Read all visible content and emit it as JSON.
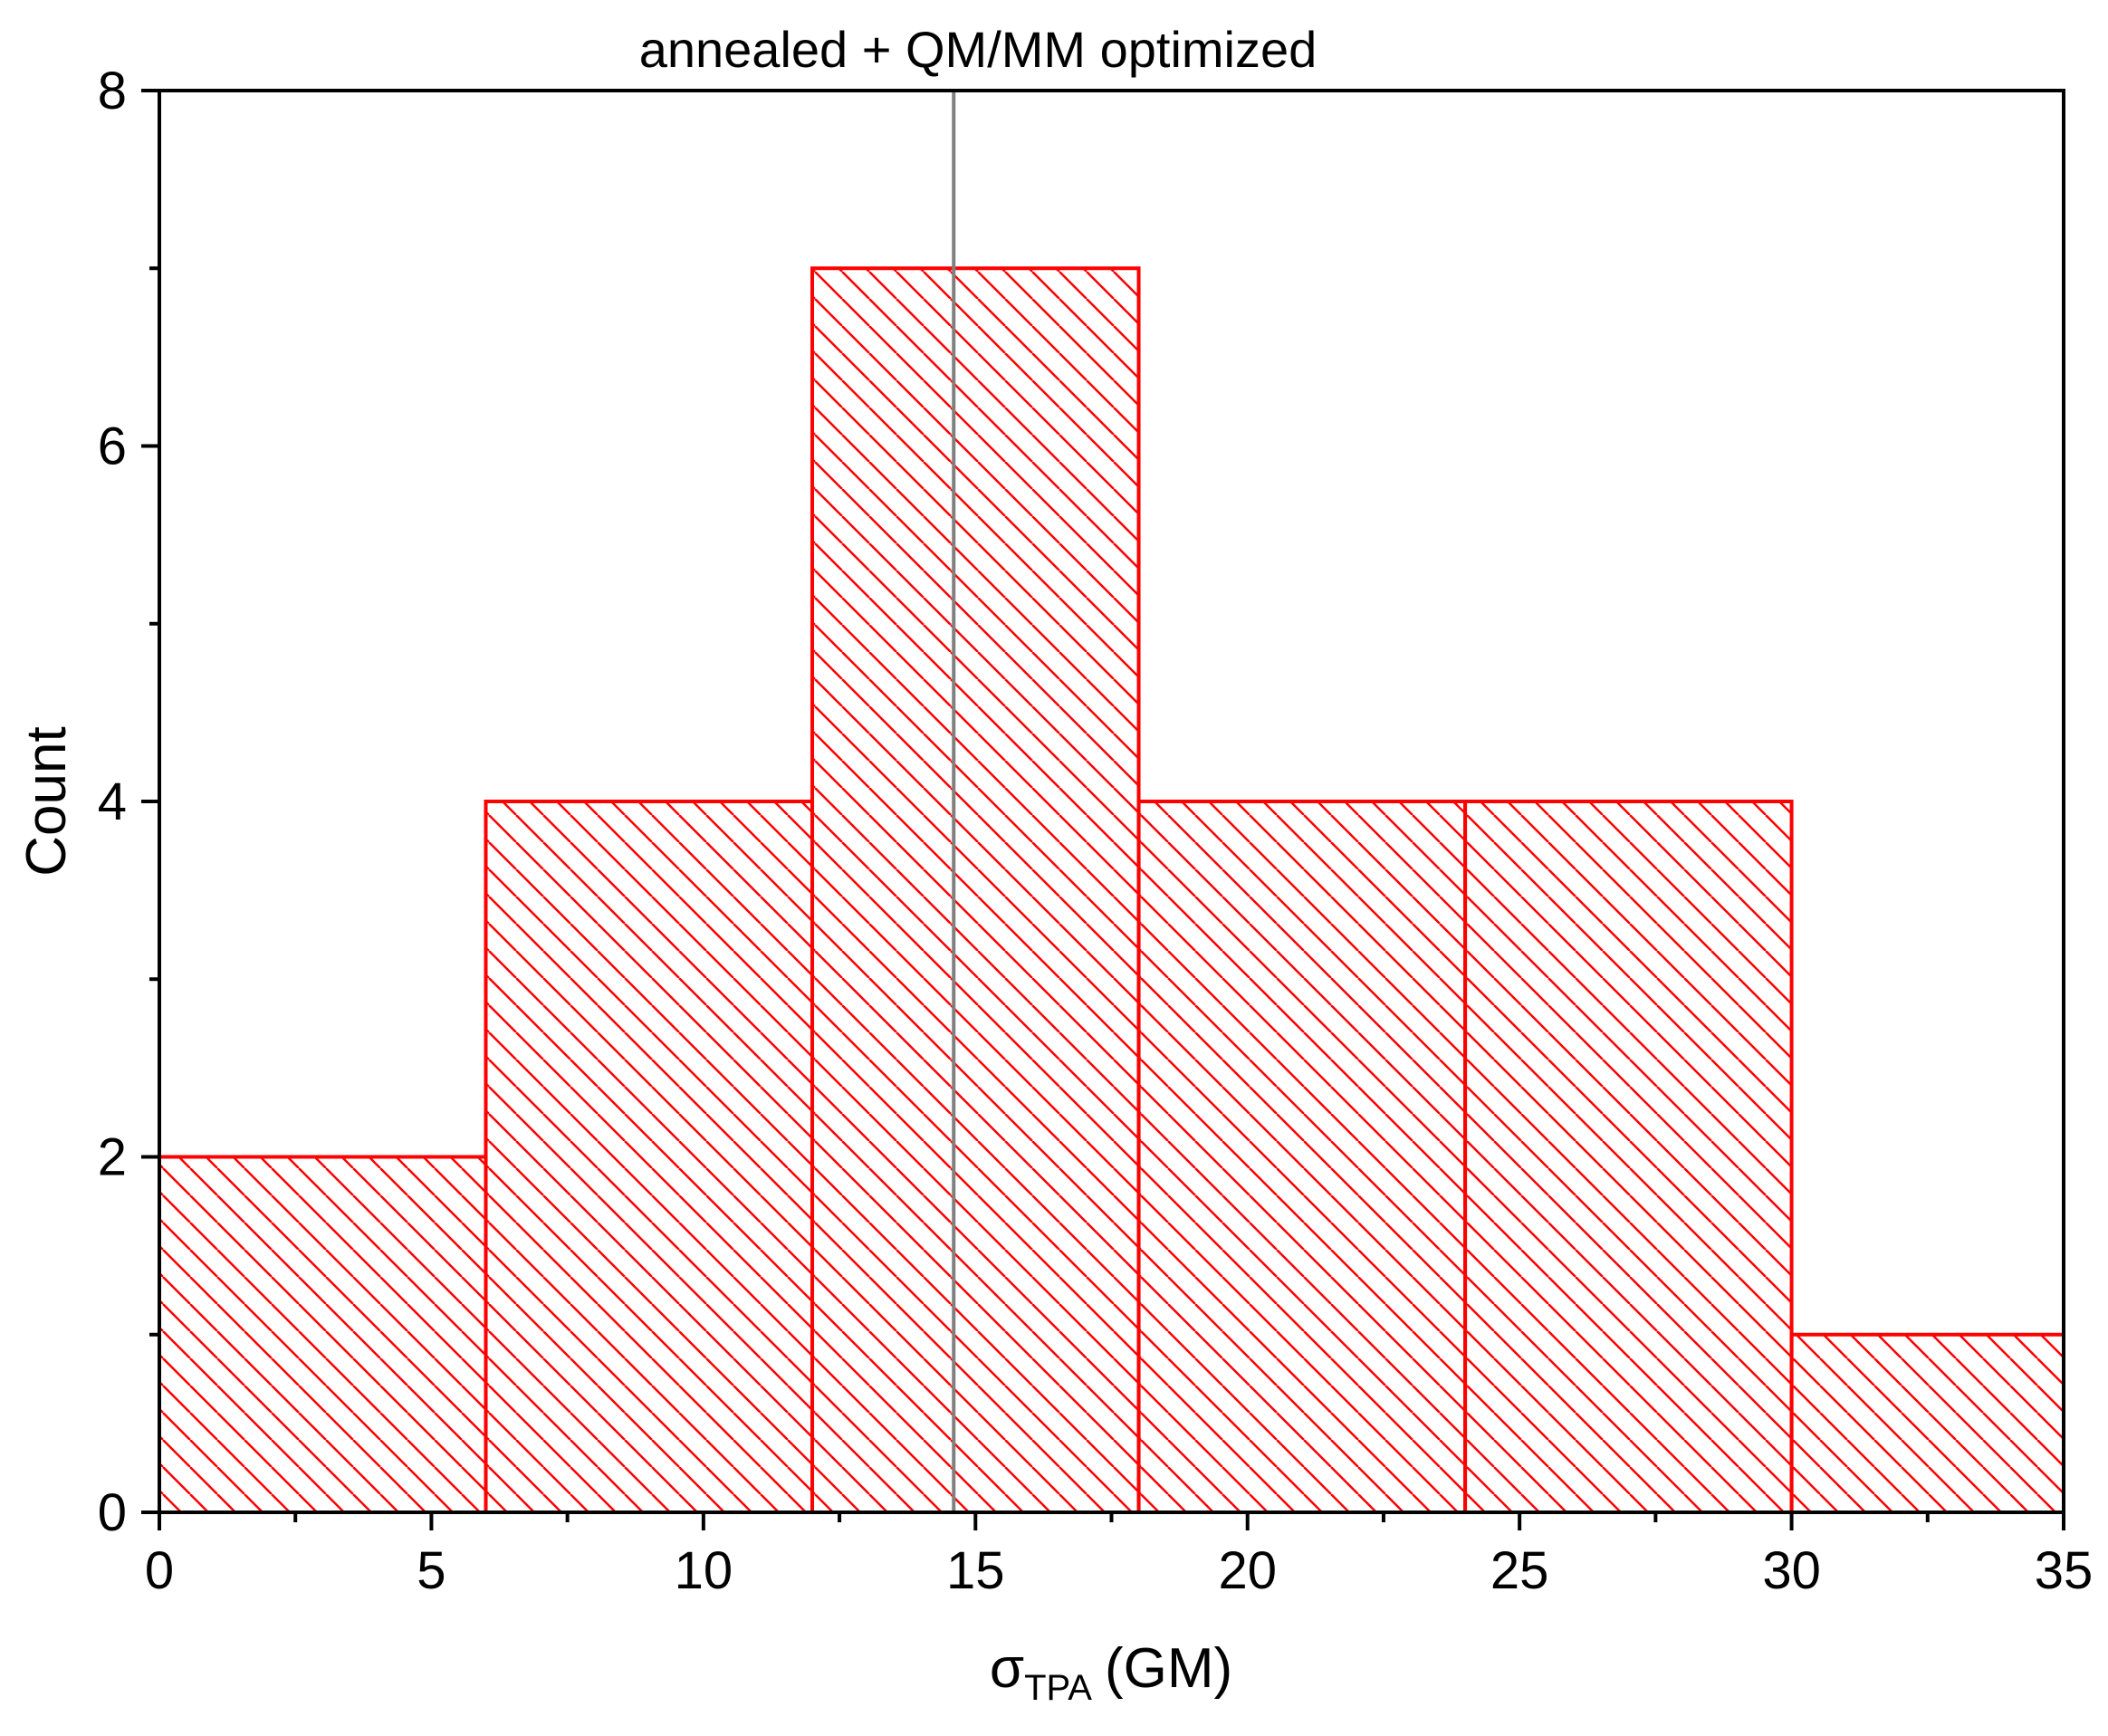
{
  "chart_data": {
    "type": "bar",
    "subtype": "histogram",
    "bins": [
      {
        "start": 0,
        "end": 6,
        "count": 2
      },
      {
        "start": 6,
        "end": 12,
        "count": 4
      },
      {
        "start": 12,
        "end": 18,
        "count": 7
      },
      {
        "start": 18,
        "end": 24,
        "count": 4
      },
      {
        "start": 24,
        "end": 30,
        "count": 4
      },
      {
        "start": 30,
        "end": 36,
        "count": 1
      }
    ],
    "xlim": [
      0,
      35
    ],
    "ylim": [
      0,
      8
    ],
    "x_ticks": [
      0,
      5,
      10,
      15,
      20,
      25,
      30,
      35
    ],
    "y_ticks": [
      0,
      2,
      4,
      6,
      8
    ],
    "xlabel_symbol": "σ",
    "xlabel_subscript": "TPA",
    "xlabel_unit": "(GM)",
    "ylabel": "Count",
    "reference_line": {
      "x": 14.6,
      "label": "annealed + QM/MM optimized",
      "color": "#808080"
    },
    "bar_color": "#ff0000",
    "bar_fill": "diagonal hatch",
    "grid": false,
    "legend": false
  }
}
